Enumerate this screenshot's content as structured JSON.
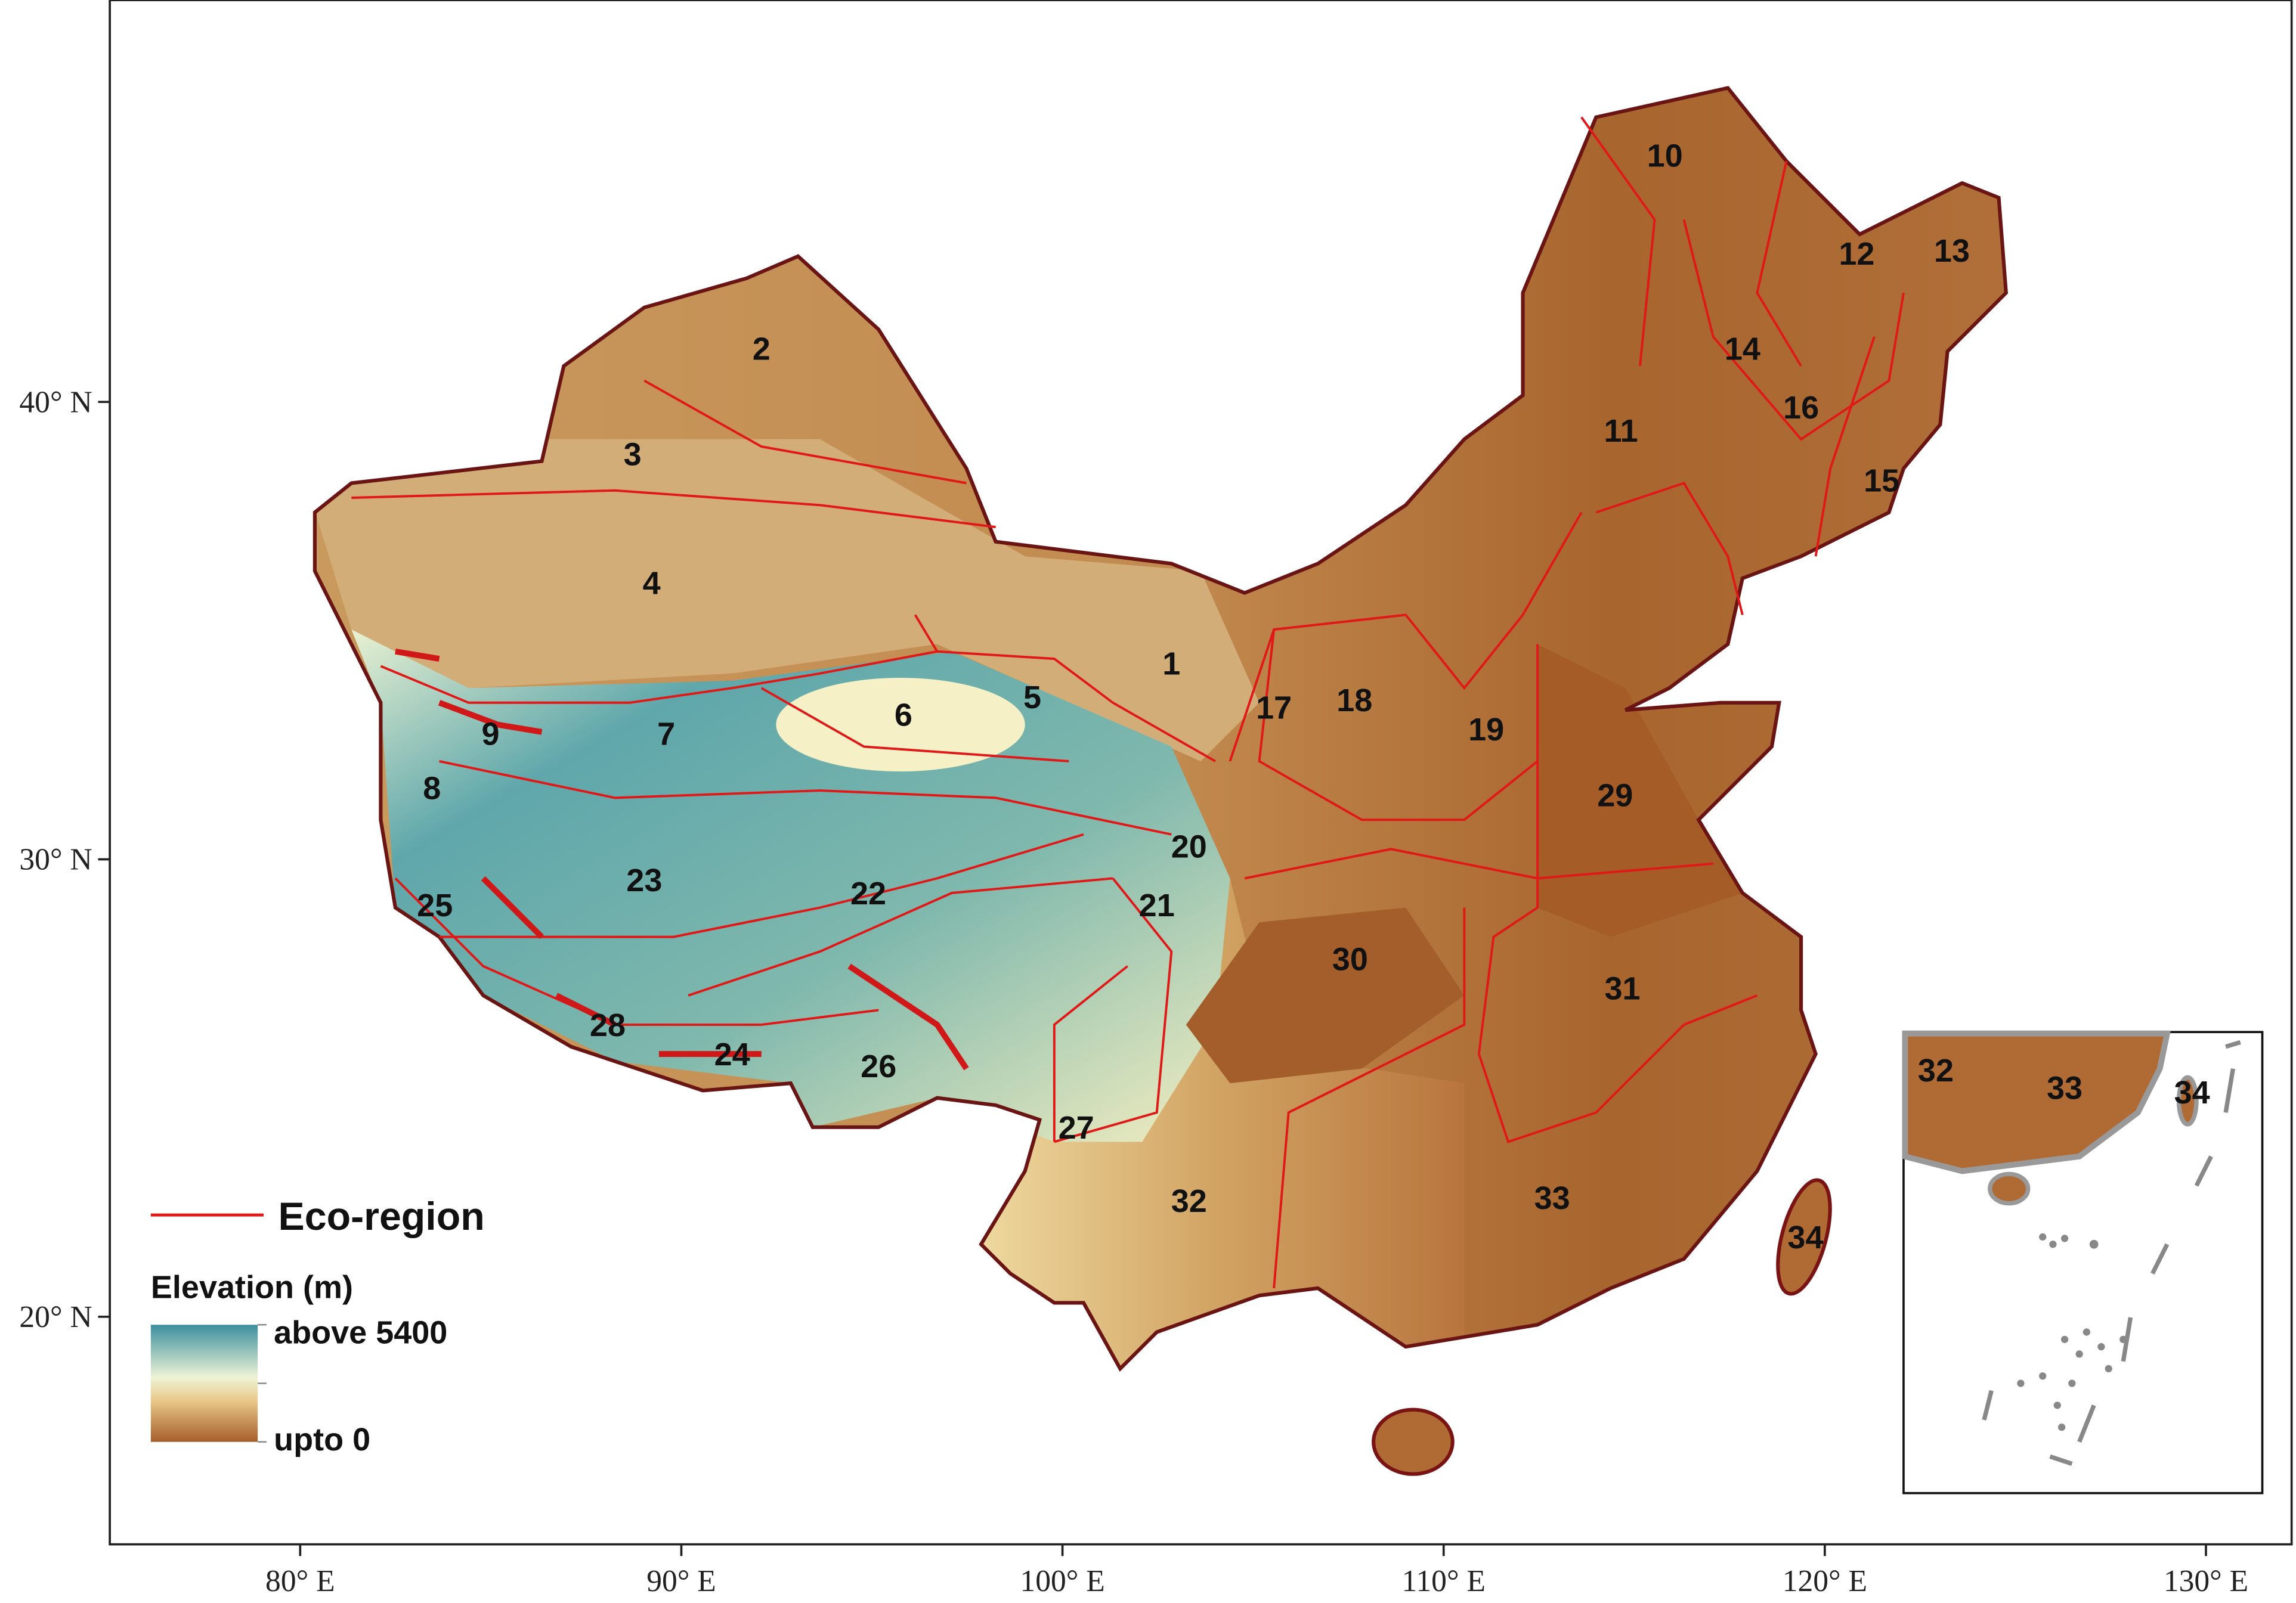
{
  "map": {
    "x_axis_ticks": [
      {
        "value": 80,
        "label": "80° E"
      },
      {
        "value": 90,
        "label": "90° E"
      },
      {
        "value": 100,
        "label": "100° E"
      },
      {
        "value": 110,
        "label": "110° E"
      },
      {
        "value": 120,
        "label": "120° E"
      },
      {
        "value": 130,
        "label": "130° E"
      }
    ],
    "y_axis_ticks": [
      {
        "value": 20,
        "label": "20° N"
      },
      {
        "value": 30,
        "label": "30° N"
      },
      {
        "value": 40,
        "label": "40° N"
      }
    ],
    "regions": [
      "1",
      "2",
      "3",
      "4",
      "5",
      "6",
      "7",
      "8",
      "9",
      "10",
      "11",
      "12",
      "13",
      "14",
      "15",
      "16",
      "17",
      "18",
      "19",
      "20",
      "21",
      "22",
      "23",
      "24",
      "25",
      "26",
      "27",
      "28",
      "29",
      "30",
      "31",
      "32",
      "33",
      "34"
    ],
    "inset_regions": [
      "32",
      "33",
      "34"
    ],
    "legend": {
      "eco_region": "Eco-region",
      "elevation_title": "Elevation (m)",
      "elevation_high": "above 5400",
      "elevation_low": "upto 0"
    }
  }
}
